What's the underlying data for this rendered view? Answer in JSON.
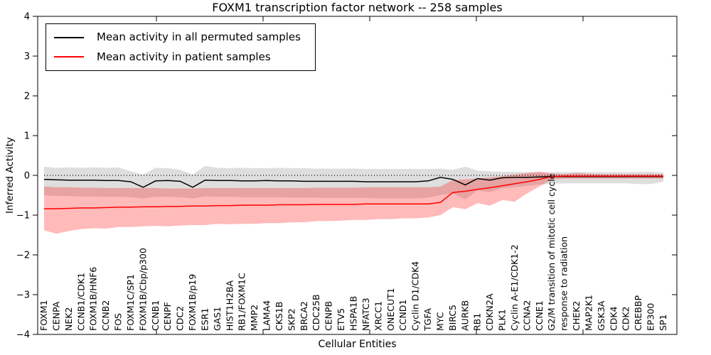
{
  "title": "FOXM1 transcription factor network -- 258 samples",
  "chart_data": {
    "type": "line",
    "title": "FOXM1 transcription factor network -- 258 samples",
    "xlabel": "Cellular Entities",
    "ylabel": "Inferred Activity",
    "ylim": [
      -4,
      4
    ],
    "grid": false,
    "legend_position": "upper left",
    "zero_line": {
      "style": "dotted",
      "color": "#000000"
    },
    "yticks": [
      {
        "v": 4,
        "label": "4"
      },
      {
        "v": 3,
        "label": "3"
      },
      {
        "v": 2,
        "label": "2"
      },
      {
        "v": 1,
        "label": "1"
      },
      {
        "v": 0,
        "label": "0"
      },
      {
        "v": -1,
        "label": "−1"
      },
      {
        "v": -2,
        "label": "−2"
      },
      {
        "v": -3,
        "label": "−3"
      },
      {
        "v": -4,
        "label": "−4"
      }
    ],
    "categories": [
      "FOXM1",
      "CENPA",
      "NEK2",
      "CCNB1/CDK1",
      "FOXM1B/HNF6",
      "CCNB2",
      "FOS",
      "FOXM1C/SP1",
      "FOXM1B/Cbp/p300",
      "CCNB1",
      "CENPF",
      "CDC2",
      "FOXM1B/p19",
      "ESR1",
      "GAS1",
      "HIST1H2BA",
      "RB1/FOXM1C",
      "MMP2",
      "LAMA4",
      "CKS1B",
      "SKP2",
      "BRCA2",
      "CDC25B",
      "CENPB",
      "ETV5",
      "HSPA1B",
      "NFATC3",
      "XRCC1",
      "ONECUT1",
      "CCND1",
      "Cyclin D1/CDK4",
      "TGFA",
      "MYC",
      "BIRC5",
      "AURKB",
      "RB1",
      "CDKN2A",
      "PLK1",
      "Cyclin A-E1/CDK1-2",
      "CCNA2",
      "CCNE1",
      "G2/M transition of mitotic cell cycle",
      "response to radiation",
      "CHEK2",
      "MAP2K1",
      "GSK3A",
      "CDK4",
      "CDK2",
      "CREBBP",
      "EP300",
      "SP1"
    ],
    "series": [
      {
        "name": "Mean activity in all permuted samples",
        "color": "#000000",
        "band_color": "rgba(0,0,0,0.13)",
        "values": [
          -0.1,
          -0.11,
          -0.12,
          -0.12,
          -0.12,
          -0.13,
          -0.13,
          -0.16,
          -0.3,
          -0.14,
          -0.13,
          -0.15,
          -0.3,
          -0.12,
          -0.13,
          -0.13,
          -0.14,
          -0.14,
          -0.13,
          -0.14,
          -0.14,
          -0.15,
          -0.15,
          -0.15,
          -0.15,
          -0.15,
          -0.16,
          -0.16,
          -0.16,
          -0.16,
          -0.16,
          -0.14,
          -0.05,
          -0.1,
          -0.24,
          -0.08,
          -0.12,
          -0.06,
          -0.05,
          -0.05,
          -0.04,
          -0.03,
          -0.03,
          -0.03,
          -0.03,
          -0.03,
          -0.03,
          -0.03,
          -0.03,
          -0.03,
          -0.03
        ],
        "band_upper": [
          0.22,
          0.19,
          0.2,
          0.19,
          0.2,
          0.19,
          0.2,
          0.1,
          0.02,
          0.19,
          0.18,
          0.14,
          0.02,
          0.24,
          0.19,
          0.18,
          0.19,
          0.18,
          0.18,
          0.19,
          0.18,
          0.18,
          0.17,
          0.17,
          0.17,
          0.17,
          0.16,
          0.16,
          0.16,
          0.16,
          0.16,
          0.16,
          0.17,
          0.14,
          0.22,
          0.12,
          0.1,
          0.09,
          0.09,
          0.08,
          0.08,
          0.08,
          0.08,
          0.08,
          0.08,
          0.08,
          0.08,
          0.08,
          0.09,
          0.09,
          0.07
        ],
        "band_lower": [
          -0.5,
          -0.52,
          -0.52,
          -0.53,
          -0.53,
          -0.54,
          -0.54,
          -0.55,
          -0.58,
          -0.54,
          -0.54,
          -0.55,
          -0.58,
          -0.53,
          -0.54,
          -0.54,
          -0.55,
          -0.55,
          -0.55,
          -0.55,
          -0.56,
          -0.56,
          -0.56,
          -0.57,
          -0.57,
          -0.57,
          -0.57,
          -0.58,
          -0.58,
          -0.58,
          -0.58,
          -0.56,
          -0.5,
          -0.45,
          -0.6,
          -0.38,
          -0.42,
          -0.32,
          -0.3,
          -0.26,
          -0.23,
          -0.21,
          -0.2,
          -0.2,
          -0.2,
          -0.2,
          -0.2,
          -0.2,
          -0.22,
          -0.22,
          -0.16
        ]
      },
      {
        "name": "Mean activity in patient samples",
        "color": "#ff0000",
        "band_color": "rgba(255,0,0,0.27)",
        "values": [
          -0.84,
          -0.84,
          -0.83,
          -0.82,
          -0.82,
          -0.81,
          -0.8,
          -0.8,
          -0.79,
          -0.79,
          -0.78,
          -0.78,
          -0.77,
          -0.77,
          -0.76,
          -0.76,
          -0.75,
          -0.75,
          -0.75,
          -0.74,
          -0.74,
          -0.74,
          -0.73,
          -0.73,
          -0.73,
          -0.73,
          -0.72,
          -0.72,
          -0.72,
          -0.72,
          -0.72,
          -0.72,
          -0.68,
          -0.43,
          -0.4,
          -0.35,
          -0.31,
          -0.26,
          -0.21,
          -0.16,
          -0.1,
          -0.03,
          -0.02,
          -0.02,
          -0.02,
          -0.02,
          -0.02,
          -0.02,
          -0.02,
          -0.02,
          -0.02
        ],
        "band_upper": [
          -0.28,
          -0.3,
          -0.3,
          -0.31,
          -0.31,
          -0.32,
          -0.32,
          -0.32,
          -0.32,
          -0.32,
          -0.33,
          -0.33,
          -0.33,
          -0.32,
          -0.32,
          -0.32,
          -0.32,
          -0.32,
          -0.32,
          -0.32,
          -0.32,
          -0.32,
          -0.31,
          -0.31,
          -0.31,
          -0.31,
          -0.3,
          -0.3,
          -0.3,
          -0.3,
          -0.3,
          -0.3,
          -0.28,
          -0.12,
          -0.1,
          -0.08,
          -0.05,
          -0.02,
          0.02,
          0.06,
          0.09,
          0.05,
          0.03,
          0.06,
          0.04,
          0.03,
          0.03,
          0.03,
          0.03,
          0.03,
          0.03
        ],
        "band_lower": [
          -1.38,
          -1.47,
          -1.4,
          -1.35,
          -1.33,
          -1.34,
          -1.3,
          -1.3,
          -1.28,
          -1.27,
          -1.28,
          -1.26,
          -1.25,
          -1.25,
          -1.22,
          -1.23,
          -1.22,
          -1.22,
          -1.2,
          -1.2,
          -1.18,
          -1.18,
          -1.15,
          -1.15,
          -1.14,
          -1.12,
          -1.12,
          -1.1,
          -1.1,
          -1.08,
          -1.08,
          -1.06,
          -1.0,
          -0.8,
          -0.85,
          -0.7,
          -0.76,
          -0.62,
          -0.66,
          -0.45,
          -0.28,
          -0.1,
          -0.08,
          -0.08,
          -0.08,
          -0.08,
          -0.08,
          -0.08,
          -0.08,
          -0.08,
          -0.08
        ]
      }
    ]
  }
}
